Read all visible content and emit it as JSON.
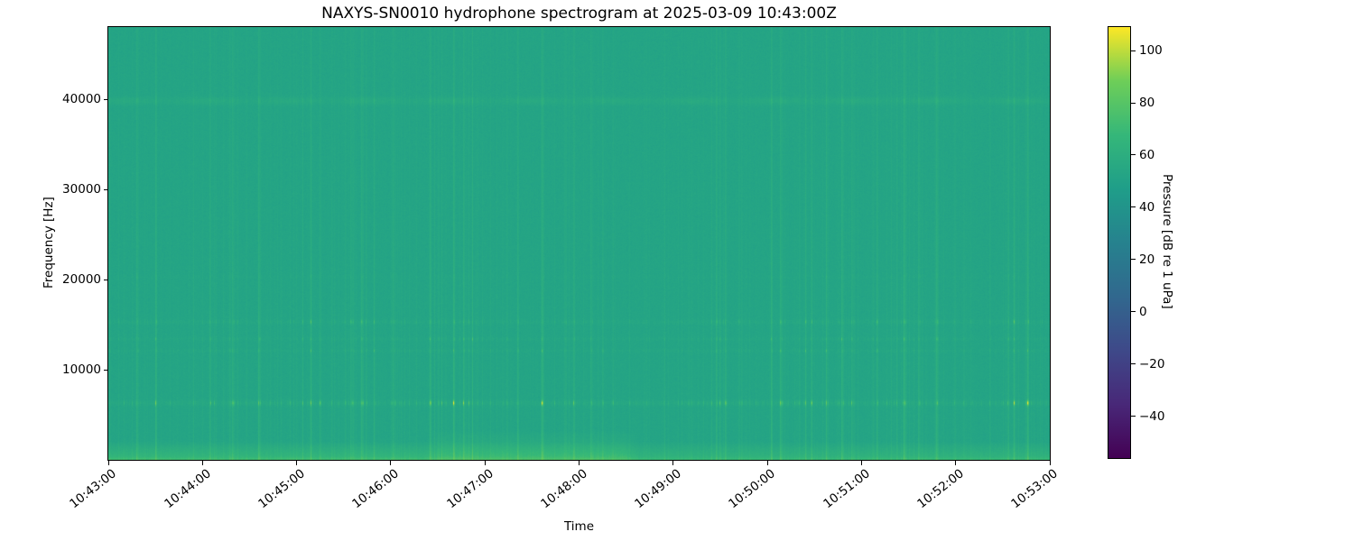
{
  "figure": {
    "title": "NAXYS-SN0010 hydrophone spectrogram at 2025-03-09 10:43:00Z"
  },
  "axes": {
    "xlabel": "Time",
    "ylabel": "Frequency [Hz]",
    "x_ticks": [
      "10:43:00",
      "10:44:00",
      "10:45:00",
      "10:46:00",
      "10:47:00",
      "10:48:00",
      "10:49:00",
      "10:50:00",
      "10:51:00",
      "10:52:00",
      "10:53:00"
    ],
    "y_ticks": [
      {
        "label": "10000",
        "value": 10000
      },
      {
        "label": "20000",
        "value": 20000
      },
      {
        "label": "30000",
        "value": 30000
      },
      {
        "label": "40000",
        "value": 40000
      }
    ]
  },
  "colorbar": {
    "label": "Pressure [dB re 1 uPa]",
    "ticks": [
      {
        "label": "100",
        "value": 100
      },
      {
        "label": "80",
        "value": 80
      },
      {
        "label": "60",
        "value": 60
      },
      {
        "label": "40",
        "value": 40
      },
      {
        "label": "20",
        "value": 20
      },
      {
        "label": "0",
        "value": 0
      },
      {
        "label": "−20",
        "value": -20
      },
      {
        "label": "−40",
        "value": -40
      }
    ],
    "vmin": -56,
    "vmax": 109,
    "colormap": "viridis"
  },
  "chart_data": {
    "type": "heatmap",
    "subtype": "hydrophone spectrogram",
    "title": "NAXYS-SN0010 hydrophone spectrogram at 2025-03-09 10:43:00Z",
    "xlabel": "Time",
    "ylabel": "Frequency [Hz]",
    "x_ticks": [
      "10:43:00",
      "10:44:00",
      "10:45:00",
      "10:46:00",
      "10:47:00",
      "10:48:00",
      "10:49:00",
      "10:50:00",
      "10:51:00",
      "10:52:00",
      "10:53:00"
    ],
    "x_span_seconds": 600,
    "ylim_hz": [
      0,
      48000
    ],
    "y_ticks_hz": [
      10000,
      20000,
      30000,
      40000
    ],
    "value_label": "Pressure [dB re 1 uPa]",
    "value_range_db": [
      -56,
      109
    ],
    "colorbar_ticks_db": [
      100,
      80,
      60,
      40,
      20,
      0,
      -20,
      -40
    ],
    "colormap": "viridis",
    "background_level_db": 52,
    "features": {
      "tonal_bands": [
        {
          "center_hz": 6300,
          "width_hz": 400,
          "typical_peak_db": 95,
          "note": "strongest band, bright impulsive yellow-green dashes across whole record"
        },
        {
          "center_hz": 12100,
          "width_hz": 260,
          "typical_peak_db": 68,
          "note": "moderate dashed band"
        },
        {
          "center_hz": 13400,
          "width_hz": 260,
          "typical_peak_db": 68,
          "note": "moderate dashed band"
        },
        {
          "center_hz": 15300,
          "width_hz": 340,
          "typical_peak_db": 70,
          "note": "moderate dashed band"
        },
        {
          "center_hz": 20300,
          "width_hz": 300,
          "typical_peak_db": 60,
          "note": "very faint dashed band"
        },
        {
          "center_hz": 39800,
          "width_hz": 600,
          "typical_peak_db": 58,
          "note": "faint continuous wavy band near 40 kHz"
        }
      ],
      "low_frequency_noise": {
        "below_hz": 2000,
        "level_db": 66,
        "note": "bright yellow-green strip along the bottom of the whole record",
        "elevated_patch": {
          "from": "10:46:25",
          "to": "10:48:25",
          "up_to_hz": 3200,
          "level_db": 72
        },
        "slightly_elevated_left_segment": {
          "from": "10:43:00",
          "to": "10:46:25",
          "up_to_hz": 2400
        }
      },
      "broadband_transients": {
        "description": "many narrow vertical streaks (impulsive broadband clicks) spanning all frequencies, stronger toward low frequencies",
        "typical_peak_db": 75
      }
    },
    "render": {
      "seed": 1337,
      "noise_db": 1.5,
      "streaks": {
        "strong_prob": 0.06,
        "strong_db": [
          5,
          13
        ],
        "med_prob": 0.19,
        "med_db": [
          1.2,
          4.2
        ],
        "weak_db": 1.1
      },
      "bands": [
        {
          "center_hz": 6300,
          "sigma_hz": 200,
          "base_db": 1.5,
          "dash_gain": 3.6,
          "dash_prob": 0.6,
          "wobble": false
        },
        {
          "center_hz": 12100,
          "sigma_hz": 130,
          "base_db": 0.8,
          "dash_gain": 1.3,
          "dash_prob": 0.5,
          "wobble": false
        },
        {
          "center_hz": 13400,
          "sigma_hz": 130,
          "base_db": 0.8,
          "dash_gain": 1.4,
          "dash_prob": 0.5,
          "wobble": false
        },
        {
          "center_hz": 15300,
          "sigma_hz": 170,
          "base_db": 1.0,
          "dash_gain": 1.7,
          "dash_prob": 0.55,
          "wobble": false
        },
        {
          "center_hz": 20300,
          "sigma_hz": 150,
          "base_db": 0.3,
          "dash_gain": 0.5,
          "dash_prob": 0.4,
          "wobble": false
        },
        {
          "center_hz": 39800,
          "sigma_hz": 300,
          "base_db": 3.0,
          "dash_gain": 0.35,
          "dash_prob": 0.9,
          "wobble": true
        }
      ],
      "low_freq": {
        "cutoff_hz": 2000,
        "gain_db": 11,
        "very_bottom_hz": 400,
        "very_bottom_db": 5,
        "patch": {
          "x0": 0.335,
          "x1": 0.545,
          "cutoff_hz": 3200,
          "gain_db": 7.5
        },
        "left": {
          "x1": 0.345,
          "cutoff_hz": 2400,
          "gain_db": 2.8
        }
      }
    },
    "colormap_stops": [
      [
        0.0,
        "#440154"
      ],
      [
        0.125,
        "#482878"
      ],
      [
        0.25,
        "#3e4989"
      ],
      [
        0.375,
        "#31688e"
      ],
      [
        0.5,
        "#26828e"
      ],
      [
        0.625,
        "#1f9e89"
      ],
      [
        0.75,
        "#35b779"
      ],
      [
        0.875,
        "#6ece58"
      ],
      [
        1.0,
        "#fde725"
      ]
    ]
  }
}
